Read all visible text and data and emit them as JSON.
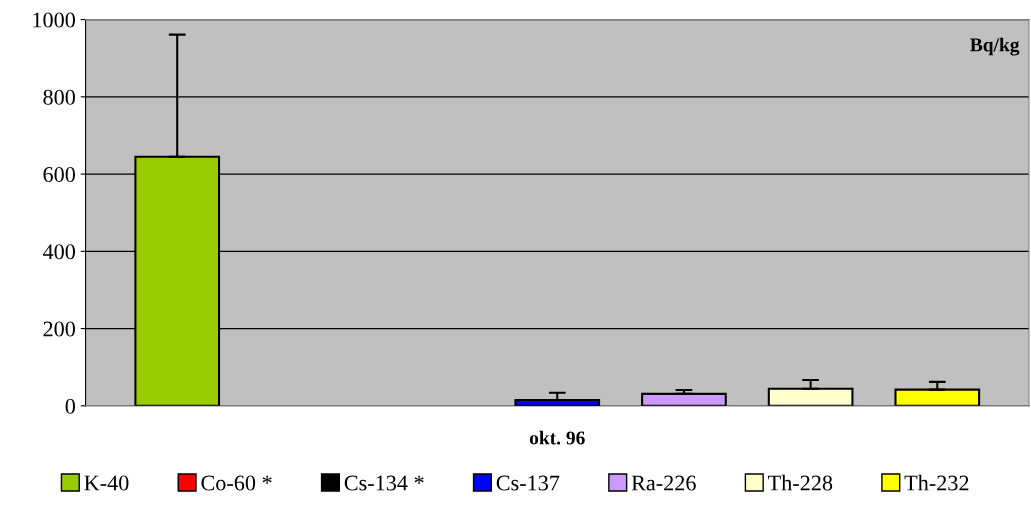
{
  "chart_data": {
    "type": "bar",
    "categories": [
      "okt. 96"
    ],
    "series": [
      {
        "name": "K-40",
        "color": "#99cc00",
        "values": [
          645
        ],
        "errors": [
          316
        ]
      },
      {
        "name": "Co-60 *",
        "color": "#ff0000",
        "values": [
          null
        ],
        "errors": [
          null
        ]
      },
      {
        "name": "Cs-134 *",
        "color": "#000000",
        "values": [
          null
        ],
        "errors": [
          null
        ]
      },
      {
        "name": "Cs-137",
        "color": "#0000ff",
        "values": [
          15
        ],
        "errors": [
          19
        ]
      },
      {
        "name": "Ra-226",
        "color": "#cc99ff",
        "values": [
          31
        ],
        "errors": [
          10
        ]
      },
      {
        "name": "Th-228",
        "color": "#ffffcc",
        "values": [
          44
        ],
        "errors": [
          23
        ]
      },
      {
        "name": "Th-232",
        "color": "#ffff00",
        "values": [
          42
        ],
        "errors": [
          20
        ]
      }
    ],
    "annotations": [
      "Bq/kg"
    ],
    "ylim": [
      0,
      1000
    ],
    "yticks": [
      0,
      200,
      400,
      600,
      800,
      1000
    ],
    "grid": "y",
    "legend": "bottom"
  }
}
